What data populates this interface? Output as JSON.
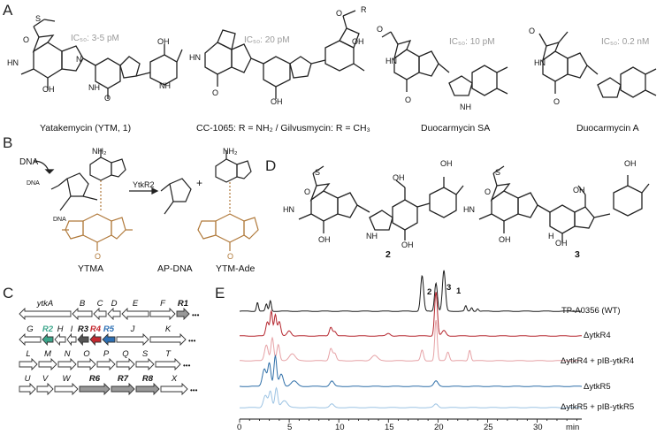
{
  "panels": {
    "a": "A",
    "b": "B",
    "c": "C",
    "d": "D",
    "e": "E"
  },
  "panelA": {
    "compounds": [
      {
        "name": "Yatakemycin (YTM, 1)",
        "ic50": "IC₅₀: 3-5 pM"
      },
      {
        "name": "CC-1065: R = NH₂ / Gilvusmycin: R = CH₃",
        "ic50": "IC₅₀: 20 pM"
      },
      {
        "name": "Duocarmycin SA",
        "ic50": "IC₅₀: 10 pM"
      },
      {
        "name": "Duocarmycin A",
        "ic50": "IC₅₀: 0.2 nM"
      }
    ],
    "atom_labels": {
      "s": "S",
      "o": "O",
      "hn": "HN",
      "nh": "NH",
      "n": "N",
      "oh": "OH",
      "r": "R",
      "h": "H"
    }
  },
  "panelB": {
    "dna": "DNA",
    "enzyme": "YtkR2",
    "plus": "+",
    "nh2": "NH₂",
    "products": [
      "YTMA",
      "AP-DNA",
      "YTM-Ade"
    ]
  },
  "panelC": {
    "rows": [
      [
        "ytkA",
        "B",
        "C",
        "D",
        "E",
        "F",
        "R1"
      ],
      [
        "G",
        "R2",
        "H",
        "I",
        "R3",
        "R4",
        "R5",
        "J",
        "K"
      ],
      [
        "L",
        "M",
        "N",
        "O",
        "P",
        "Q",
        "S",
        "T"
      ],
      [
        "U",
        "V",
        "W",
        "R6",
        "R7",
        "R8",
        "X"
      ]
    ],
    "ellipsis": "•••"
  },
  "panelD": {
    "compounds": [
      "2",
      "3"
    ]
  },
  "panelE": {
    "traces": [
      {
        "label": "TP-A0356 (WT)",
        "color": "#1a1a1a"
      },
      {
        "label": "ΔytkR4",
        "color": "#b5262e"
      },
      {
        "label": "ΔytkR4 + pIB-ytkR4",
        "color": "#e6a2a6"
      },
      {
        "label": "ΔytkR5",
        "color": "#2f6fa8"
      },
      {
        "label": "ΔytkR5 + pIB-ytkR5",
        "color": "#9cc3e3"
      }
    ],
    "peak_labels": [
      "2",
      "3",
      "1"
    ],
    "x_ticks": [
      "0",
      "5",
      "10",
      "15",
      "20",
      "25",
      "30"
    ],
    "x_unit": "min",
    "accent_colors": {
      "teal": "#3aa58a",
      "red": "#c4282f",
      "blue": "#2c6fb3",
      "grey": "#999999",
      "orange": "#b0793a"
    }
  }
}
